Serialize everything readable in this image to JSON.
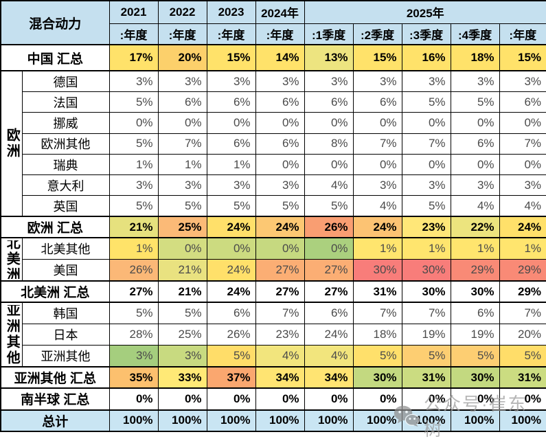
{
  "chart_data": {
    "type": "table",
    "title": "混合动力",
    "header": {
      "corner_label": "混合动力",
      "years": [
        {
          "label": "2021",
          "span": 1
        },
        {
          "label": "2022",
          "span": 1
        },
        {
          "label": "2023",
          "span": 1
        },
        {
          "label": "2024年",
          "span": 1
        },
        {
          "label": "2025年",
          "span": 5
        }
      ],
      "periods": [
        ":年度",
        ":年度",
        ":年度",
        ":年度",
        ":1季度",
        ":2季度",
        ":3季度",
        ":4季度",
        ":年度"
      ]
    },
    "rows": [
      {
        "type": "summary",
        "label": "中国 汇总",
        "values": [
          "17%",
          "20%",
          "15%",
          "14%",
          "13%",
          "15%",
          "16%",
          "18%",
          "15%"
        ],
        "fills": [
          "#FFE26A",
          "#FCD06B",
          "#FFE26A",
          "#FFE26A",
          "#EDE480",
          "#FFE26A",
          "#FFE26A",
          "#FFE26A",
          "#FFE26A"
        ]
      },
      {
        "type": "country",
        "group": "欧洲",
        "group_rows": 7,
        "label": "德国",
        "values": [
          "3%",
          "3%",
          "3%",
          "3%",
          "3%",
          "3%",
          "3%",
          "3%",
          "3%"
        ]
      },
      {
        "type": "country",
        "label": "法国",
        "values": [
          "5%",
          "6%",
          "6%",
          "6%",
          "6%",
          "6%",
          "5%",
          "5%",
          "6%"
        ]
      },
      {
        "type": "country",
        "label": "挪威",
        "values": [
          "0%",
          "0%",
          "0%",
          "0%",
          "0%",
          "0%",
          "0%",
          "0%",
          "0%"
        ]
      },
      {
        "type": "country",
        "label": "欧洲其他",
        "values": [
          "5%",
          "7%",
          "6%",
          "6%",
          "8%",
          "7%",
          "7%",
          "6%",
          "7%"
        ]
      },
      {
        "type": "country",
        "label": "瑞典",
        "values": [
          "1%",
          "1%",
          "1%",
          "0%",
          "0%",
          "0%",
          "0%",
          "0%",
          "0%"
        ]
      },
      {
        "type": "country",
        "label": "意大利",
        "values": [
          "3%",
          "3%",
          "3%",
          "3%",
          "4%",
          "3%",
          "3%",
          "3%",
          "3%"
        ]
      },
      {
        "type": "country",
        "label": "英国",
        "values": [
          "5%",
          "5%",
          "5%",
          "5%",
          "5%",
          "4%",
          "5%",
          "4%",
          "4%"
        ]
      },
      {
        "type": "summary",
        "label": "欧洲 汇总",
        "values": [
          "21%",
          "25%",
          "24%",
          "24%",
          "26%",
          "24%",
          "23%",
          "22%",
          "24%"
        ],
        "fills": [
          "#E6E17E",
          "#FBBA77",
          "#FFE06A",
          "#FCC873",
          "#F99E72",
          "#FCC373",
          "#FFE778",
          "#ECE47E",
          "#FFE06A"
        ]
      },
      {
        "type": "country",
        "group": "北美洲",
        "group_rows": 2,
        "label": "北美其他",
        "values": [
          "1%",
          "0%",
          "0%",
          "0%",
          "0%",
          "1%",
          "1%",
          "1%",
          "1%"
        ],
        "fills": [
          "#FFE369",
          "#D3DD81",
          "#CCDB80",
          "#C6D980",
          "#ABD07E",
          "#FFE56E",
          "#FFE56E",
          "#FFE56E",
          "#FFE56E"
        ]
      },
      {
        "type": "country",
        "label": "美国",
        "values": [
          "26%",
          "21%",
          "24%",
          "27%",
          "27%",
          "30%",
          "30%",
          "29%",
          "29%"
        ],
        "fills": [
          "#FBB877",
          "#E9E280",
          "#FFE06A",
          "#FBAE74",
          "#FBAE74",
          "#F87D7A",
          "#F87D7A",
          "#F98A76",
          "#F98A76"
        ]
      },
      {
        "type": "summary",
        "label": "北美洲 汇总",
        "values": [
          "27%",
          "21%",
          "24%",
          "27%",
          "27%",
          "31%",
          "30%",
          "30%",
          "29%"
        ]
      },
      {
        "type": "country",
        "group": "亚洲其他",
        "group_rows": 3,
        "label": "韩国",
        "values": [
          "5%",
          "5%",
          "6%",
          "7%",
          "6%",
          "7%",
          "7%",
          "6%",
          "7%"
        ]
      },
      {
        "type": "country",
        "label": "日本",
        "values": [
          "28%",
          "25%",
          "26%",
          "23%",
          "24%",
          "18%",
          "19%",
          "19%",
          "20%"
        ]
      },
      {
        "type": "country",
        "label": "亚洲其他",
        "values": [
          "3%",
          "3%",
          "5%",
          "4%",
          "4%",
          "5%",
          "5%",
          "5%",
          "5%"
        ],
        "fills": [
          "#A5CE7E",
          "#C8DA80",
          "#FFDD69",
          "#F2E57D",
          "#F2E57D",
          "#FFE06B",
          "#FDCE72",
          "#FDCE72",
          "#FFDD69"
        ]
      },
      {
        "type": "summary",
        "label": "亚洲其他 汇总",
        "values": [
          "35%",
          "33%",
          "37%",
          "34%",
          "34%",
          "30%",
          "31%",
          "30%",
          "31%"
        ],
        "fills": [
          "#FCC06E",
          "#FFE976",
          "#FAA76F",
          "#FFE472",
          "#FFE472",
          "#C3D980",
          "#CBDC81",
          "#C3D980",
          "#CBDC81"
        ]
      },
      {
        "type": "summary",
        "label": "南半球 汇总",
        "values": [
          "0%",
          "0%",
          "0%",
          "0%",
          "0%",
          "0%",
          "0%",
          "0%",
          "0%"
        ]
      },
      {
        "type": "total",
        "label": "总计",
        "values": [
          "100%",
          "100%",
          "100%",
          "100%",
          "100%",
          "100%",
          "100%",
          "100%",
          "100%"
        ]
      }
    ]
  },
  "watermark": {
    "icon": "wechat-icon",
    "text": "公众号·崔东树"
  },
  "colors": {
    "header_bg": "#C5E0EF",
    "total_bg": "#C9E5F3",
    "border": "#000000",
    "value_gray": "#4A4A4A",
    "watermark_gray": "#9B9B9B"
  }
}
